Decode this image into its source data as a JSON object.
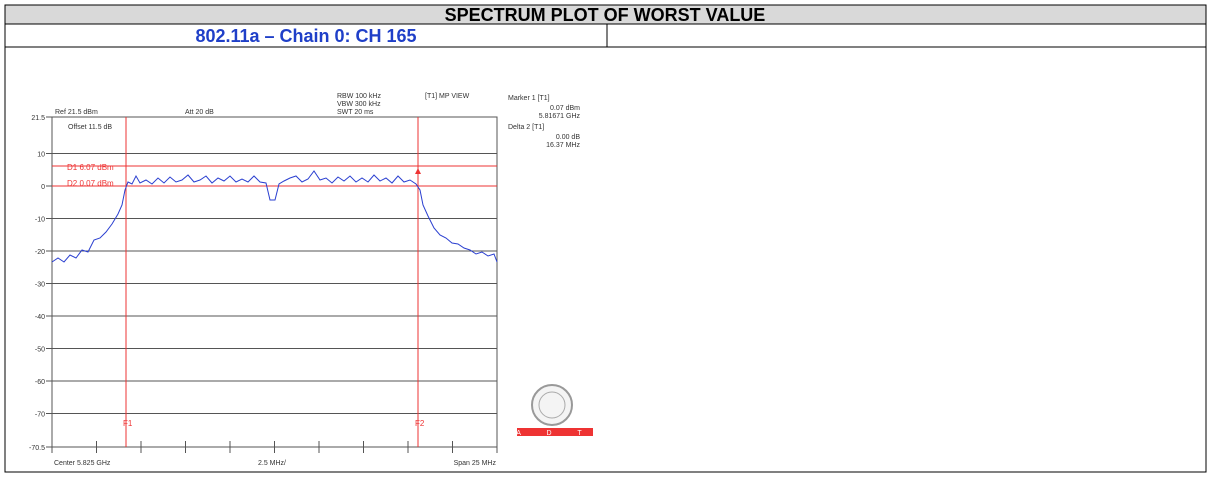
{
  "header": {
    "title": "SPECTRUM PLOT OF WORST VALUE",
    "subtitle": "802.11a – Chain 0: CH 165"
  },
  "plot": {
    "settings": [
      "RBW 100 kHz",
      "VBW 300 kHz",
      "SWT 20 ms"
    ],
    "view": "[T1] MP VIEW",
    "ref": "Ref 21.5 dBm",
    "att": "Att 20 dB",
    "offset": "Offset 11.5 dB",
    "marker1": {
      "label": "Marker 1 [T1]",
      "level": "0.07 dBm",
      "freq": "5.81671 GHz"
    },
    "delta2": {
      "label": "Delta 2 [T1]",
      "level": "0.00 dB",
      "freq": "16.37 MHz"
    },
    "lines": [
      "D1 6.07 dBm",
      "D2 0.07 dBm"
    ],
    "markers": [
      "F1",
      "F2"
    ],
    "yticks": [
      "21.5",
      "10",
      "0",
      "-10",
      "-20",
      "-30",
      "-40",
      "-50",
      "-60",
      "-70",
      "-70.5"
    ],
    "footer": {
      "center": "Center 5.825 GHz",
      "div": "2.5 MHz/",
      "span": "Span 25 MHz"
    },
    "logo": "A D T"
  }
}
